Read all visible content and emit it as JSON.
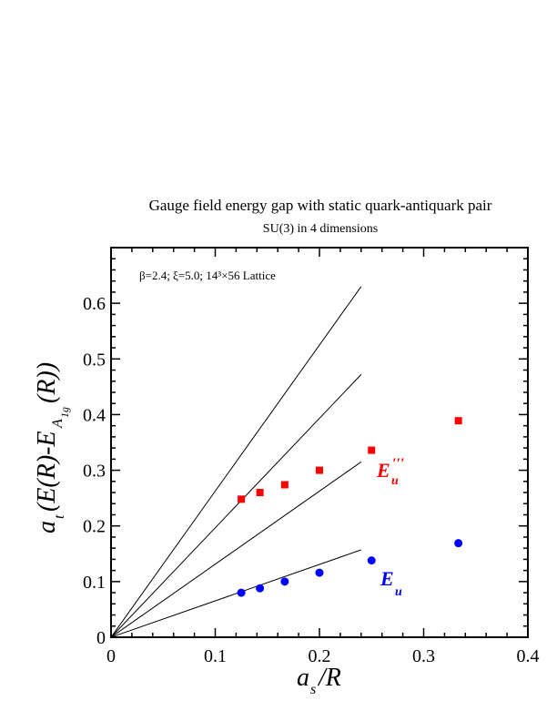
{
  "chart_data": {
    "type": "scatter",
    "title": "Gauge field energy gap with static quark-antiquark pair",
    "subtitle": "SU(3) in 4 dimensions",
    "annotation": "β=2.4;  ξ=5.0;  14³×56 Lattice",
    "xlabel": "a_s/R",
    "ylabel": "a_t(E(R)-E_A1g(R))",
    "xlim": [
      0,
      0.4
    ],
    "ylim": [
      0,
      0.7
    ],
    "x_ticks": [
      "0",
      "0.1",
      "0.2",
      "0.3",
      "0.4"
    ],
    "y_ticks": [
      "0",
      "0.1",
      "0.2",
      "0.3",
      "0.4",
      "0.5",
      "0.6"
    ],
    "grid": false,
    "series": [
      {
        "name": "E_u'''",
        "marker": "square",
        "color": "#ff0000",
        "points": [
          {
            "x": 0.125,
            "y": 0.248
          },
          {
            "x": 0.1429,
            "y": 0.26
          },
          {
            "x": 0.1667,
            "y": 0.274
          },
          {
            "x": 0.2,
            "y": 0.3
          },
          {
            "x": 0.25,
            "y": 0.336
          },
          {
            "x": 0.3333,
            "y": 0.389
          }
        ]
      },
      {
        "name": "E_u",
        "marker": "circle",
        "color": "#0000ff",
        "points": [
          {
            "x": 0.125,
            "y": 0.08
          },
          {
            "x": 0.1429,
            "y": 0.088
          },
          {
            "x": 0.1667,
            "y": 0.1
          },
          {
            "x": 0.2,
            "y": 0.116
          },
          {
            "x": 0.25,
            "y": 0.138
          },
          {
            "x": 0.3333,
            "y": 0.169
          }
        ]
      }
    ],
    "reference_lines": [
      {
        "x": [
          0,
          0.24
        ],
        "y": [
          0,
          0.63
        ]
      },
      {
        "x": [
          0,
          0.24
        ],
        "y": [
          0,
          0.472
        ]
      },
      {
        "x": [
          0,
          0.24
        ],
        "y": [
          0,
          0.315
        ]
      },
      {
        "x": [
          0,
          0.24
        ],
        "y": [
          0,
          0.157
        ]
      }
    ]
  }
}
